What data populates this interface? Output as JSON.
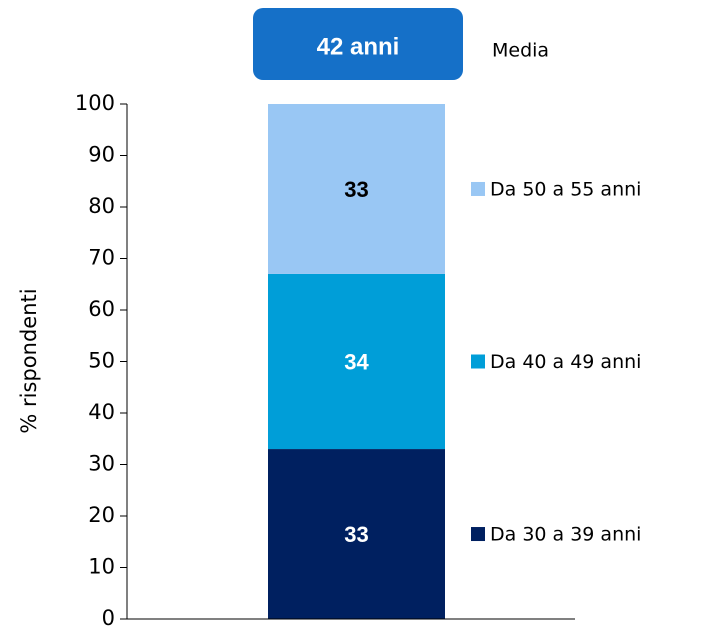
{
  "chart_data": {
    "type": "stacked_bar",
    "annotations": {
      "box": "42 anni",
      "label": "Media",
      "box_color": "#1570c8"
    },
    "ylabel": "% rispondenti",
    "categories": [
      null
    ],
    "series": [
      {
        "name": "Da 30 a 39 anni",
        "color": "#002060",
        "label_color": "#ffffff",
        "values": [
          33
        ]
      },
      {
        "name": "Da 40 a 49 anni",
        "color": "#009ed8",
        "label_color": "#ffffff",
        "values": [
          34
        ]
      },
      {
        "name": "Da 50 a 55 anni",
        "color": "#99c7f4",
        "label_color": "#000000",
        "values": [
          33
        ]
      }
    ],
    "ylim": [
      0,
      100
    ],
    "yticks": [
      0,
      10,
      20,
      30,
      40,
      50,
      60,
      70,
      80,
      90,
      100
    ],
    "legend": "right"
  }
}
